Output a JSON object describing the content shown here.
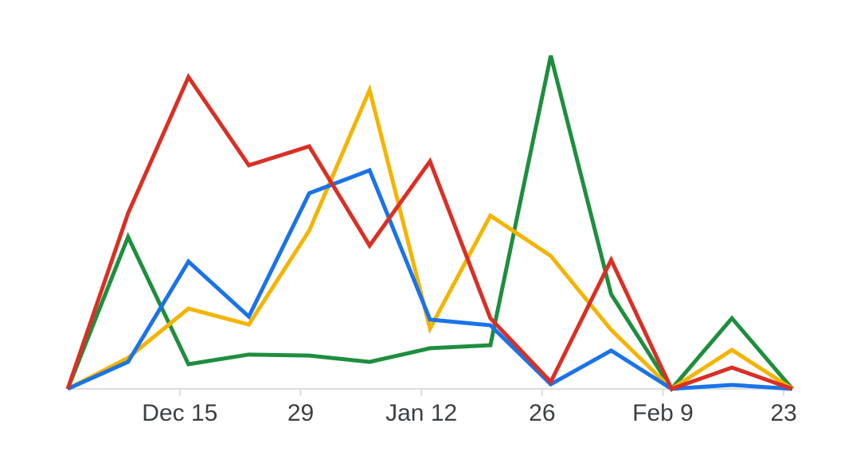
{
  "chart_data": {
    "type": "line",
    "x": [
      0,
      7,
      14,
      21,
      28,
      35,
      42,
      49,
      56,
      63,
      70,
      77,
      84
    ],
    "xlim": [
      0,
      84
    ],
    "xticks": [
      {
        "value": 13,
        "label": "Dec 15"
      },
      {
        "value": 27,
        "label": "29"
      },
      {
        "value": 41,
        "label": "Jan 12"
      },
      {
        "value": 55,
        "label": "26"
      },
      {
        "value": 69,
        "label": "Feb 9"
      },
      {
        "value": 83,
        "label": "23"
      }
    ],
    "ylim": [
      0,
      100
    ],
    "series": [
      {
        "color": "#1e8e3e",
        "values": [
          0,
          45.6,
          7.4,
          10.3,
          10.0,
          8.1,
          12.2,
          13.1,
          100,
          28.4,
          0,
          21.2,
          0
        ]
      },
      {
        "color": "#f4b400",
        "values": [
          0,
          9.3,
          24.1,
          19.3,
          47.5,
          89.7,
          18.1,
          52.0,
          39.9,
          17.7,
          0,
          11.7,
          0
        ]
      },
      {
        "color": "#1a73e8",
        "values": [
          0,
          8.1,
          38.2,
          21.7,
          58.7,
          65.6,
          20.8,
          19.1,
          1.4,
          11.5,
          0,
          1.2,
          0
        ]
      },
      {
        "color": "#d93025",
        "values": [
          0,
          52.7,
          93.6,
          67.1,
          72.8,
          43.0,
          68.3,
          21.2,
          2.1,
          38.7,
          0,
          6.4,
          0
        ]
      }
    ]
  }
}
